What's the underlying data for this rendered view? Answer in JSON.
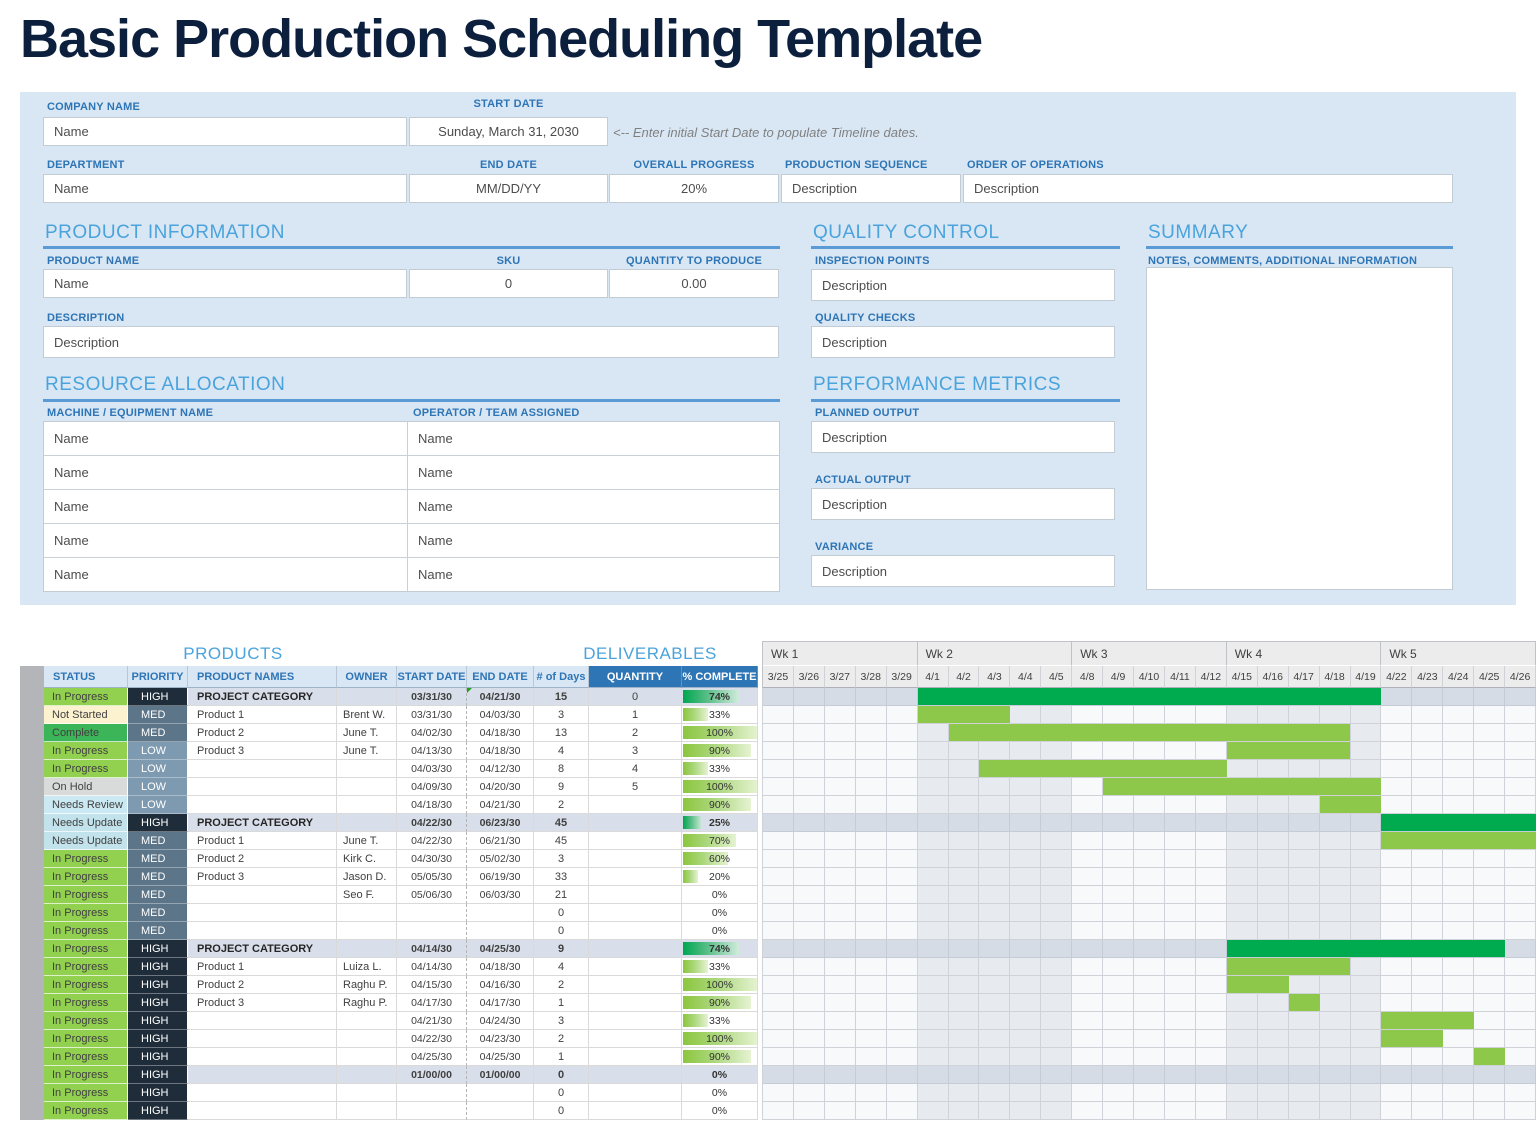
{
  "page_title": "Basic Production Scheduling Template",
  "colors": {
    "status": {
      "In Progress": "#92d050",
      "Not Started": "#fdf2d0",
      "Complete": "#3cb558",
      "On Hold": "#d9dbdb",
      "Needs Review": "#cbe9f2",
      "Needs Update": "#c2e2ec"
    },
    "priority": {
      "HIGH": "#1f2d3a",
      "MED": "#5d7588",
      "LOW": "#7e9ab0"
    },
    "gantt_bar_dark": "#00ab4f",
    "gantt_bar_light": "#8dc84b",
    "accent_blue": "#2e75b6",
    "section_blue": "#4aa3dc"
  },
  "form": {
    "company_name": {
      "label": "COMPANY NAME",
      "value": "Name"
    },
    "start_date": {
      "label": "START DATE",
      "value": "Sunday, March 31, 2030"
    },
    "start_date_hint": "<-- Enter initial Start Date to populate Timeline dates.",
    "department": {
      "label": "DEPARTMENT",
      "value": "Name"
    },
    "end_date": {
      "label": "END DATE",
      "value": "MM/DD/YY"
    },
    "overall_progress": {
      "label": "OVERALL PROGRESS",
      "value": "20%"
    },
    "production_sequence": {
      "label": "PRODUCTION SEQUENCE",
      "value": "Description"
    },
    "order_of_operations": {
      "label": "ORDER OF OPERATIONS",
      "value": "Description"
    }
  },
  "product_information": {
    "title": "PRODUCT INFORMATION",
    "product_name": {
      "label": "PRODUCT NAME",
      "value": "Name"
    },
    "sku": {
      "label": "SKU",
      "value": "0"
    },
    "quantity_to_produce": {
      "label": "QUANTITY TO PRODUCE",
      "value": "0.00"
    },
    "description": {
      "label": "DESCRIPTION",
      "value": "Description"
    }
  },
  "quality_control": {
    "title": "QUALITY CONTROL",
    "inspection_points": {
      "label": "INSPECTION POINTS",
      "value": "Description"
    },
    "quality_checks": {
      "label": "QUALITY CHECKS",
      "value": "Description"
    }
  },
  "summary": {
    "title": "SUMMARY",
    "notes_label": "NOTES, COMMENTS, ADDITIONAL INFORMATION",
    "notes_value": ""
  },
  "resource_allocation": {
    "title": "RESOURCE ALLOCATION",
    "machine_label": "MACHINE / EQUIPMENT NAME",
    "operator_label": "OPERATOR / TEAM ASSIGNED",
    "rows": [
      {
        "machine": "Name",
        "operator": "Name"
      },
      {
        "machine": "Name",
        "operator": "Name"
      },
      {
        "machine": "Name",
        "operator": "Name"
      },
      {
        "machine": "Name",
        "operator": "Name"
      },
      {
        "machine": "Name",
        "operator": "Name"
      }
    ]
  },
  "performance_metrics": {
    "title": "PERFORMANCE METRICS",
    "planned_output": {
      "label": "PLANNED OUTPUT",
      "value": "Description"
    },
    "actual_output": {
      "label": "ACTUAL OUTPUT",
      "value": "Description"
    },
    "variance": {
      "label": "VARIANCE",
      "value": "Description"
    }
  },
  "schedule_table": {
    "products_title": "PRODUCTS",
    "deliverables_title": "DELIVERABLES",
    "columns": [
      "STATUS",
      "PRIORITY",
      "PRODUCT NAMES",
      "OWNER",
      "START DATE",
      "END DATE",
      "# of Days",
      "QUANTITY",
      "% COMPLETE"
    ],
    "rows": [
      {
        "status": "In Progress",
        "priority": "HIGH",
        "product": "PROJECT CATEGORY",
        "owner": "",
        "start": "03/31/30",
        "end": "04/21/30",
        "days": "15",
        "qty": "0",
        "pct": "74%",
        "pct_value": 74,
        "category": true,
        "note_marker": true,
        "bar": {
          "from": 5,
          "to": 19
        },
        "bar_type": "dark"
      },
      {
        "status": "Not Started",
        "priority": "MED",
        "product": "Product 1",
        "owner": "Brent W.",
        "start": "03/31/30",
        "end": "04/03/30",
        "days": "3",
        "qty": "1",
        "pct": "33%",
        "pct_value": 33,
        "bar": {
          "from": 5,
          "to": 7
        },
        "bar_type": "light"
      },
      {
        "status": "Complete",
        "priority": "MED",
        "product": "Product 2",
        "owner": "June T.",
        "start": "04/02/30",
        "end": "04/18/30",
        "days": "13",
        "qty": "2",
        "pct": "100%",
        "pct_value": 100,
        "bar": {
          "from": 6,
          "to": 18
        },
        "bar_type": "light"
      },
      {
        "status": "In Progress",
        "priority": "LOW",
        "product": "Product 3",
        "owner": "June T.",
        "start": "04/13/30",
        "end": "04/18/30",
        "days": "4",
        "qty": "3",
        "pct": "90%",
        "pct_value": 90,
        "bar": {
          "from": 15,
          "to": 18
        },
        "bar_type": "light"
      },
      {
        "status": "In Progress",
        "priority": "LOW",
        "product": "",
        "owner": "",
        "start": "04/03/30",
        "end": "04/12/30",
        "days": "8",
        "qty": "4",
        "pct": "33%",
        "pct_value": 33,
        "bar": {
          "from": 7,
          "to": 14
        },
        "bar_type": "light"
      },
      {
        "status": "On Hold",
        "priority": "LOW",
        "product": "",
        "owner": "",
        "start": "04/09/30",
        "end": "04/20/30",
        "days": "9",
        "qty": "5",
        "pct": "100%",
        "pct_value": 100,
        "bar": {
          "from": 11,
          "to": 19
        },
        "bar_type": "light"
      },
      {
        "status": "Needs Review",
        "priority": "LOW",
        "product": "",
        "owner": "",
        "start": "04/18/30",
        "end": "04/21/30",
        "days": "2",
        "qty": "",
        "pct": "90%",
        "pct_value": 90,
        "bar": {
          "from": 18,
          "to": 19
        },
        "bar_type": "light"
      },
      {
        "status": "Needs Update",
        "priority": "HIGH",
        "product": "PROJECT CATEGORY",
        "owner": "",
        "start": "04/22/30",
        "end": "06/23/30",
        "days": "45",
        "qty": "",
        "pct": "25%",
        "pct_value": 25,
        "category": true,
        "bar": {
          "from": 20,
          "to": 24
        },
        "bar_type": "dark"
      },
      {
        "status": "Needs Update",
        "priority": "MED",
        "product": "Product 1",
        "owner": "June T.",
        "start": "04/22/30",
        "end": "06/21/30",
        "days": "45",
        "qty": "",
        "pct": "70%",
        "pct_value": 70,
        "bar": {
          "from": 20,
          "to": 24
        },
        "bar_type": "light"
      },
      {
        "status": "In Progress",
        "priority": "MED",
        "product": "Product 2",
        "owner": "Kirk C.",
        "start": "04/30/30",
        "end": "05/02/30",
        "days": "3",
        "qty": "",
        "pct": "60%",
        "pct_value": 60
      },
      {
        "status": "In Progress",
        "priority": "MED",
        "product": "Product 3",
        "owner": "Jason D.",
        "start": "05/05/30",
        "end": "06/19/30",
        "days": "33",
        "qty": "",
        "pct": "20%",
        "pct_value": 20
      },
      {
        "status": "In Progress",
        "priority": "MED",
        "product": "",
        "owner": "Seo F.",
        "start": "05/06/30",
        "end": "06/03/30",
        "days": "21",
        "qty": "",
        "pct": "0%",
        "pct_value": 0
      },
      {
        "status": "In Progress",
        "priority": "MED",
        "product": "",
        "owner": "",
        "start": "",
        "end": "",
        "days": "0",
        "qty": "",
        "pct": "0%",
        "pct_value": 0
      },
      {
        "status": "In Progress",
        "priority": "MED",
        "product": "",
        "owner": "",
        "start": "",
        "end": "",
        "days": "0",
        "qty": "",
        "pct": "0%",
        "pct_value": 0
      },
      {
        "status": "In Progress",
        "priority": "HIGH",
        "product": "PROJECT CATEGORY",
        "owner": "",
        "start": "04/14/30",
        "end": "04/25/30",
        "days": "9",
        "qty": "",
        "pct": "74%",
        "pct_value": 74,
        "category": true,
        "bar": {
          "from": 15,
          "to": 23
        },
        "bar_type": "dark"
      },
      {
        "status": "In Progress",
        "priority": "HIGH",
        "product": "Product 1",
        "owner": "Luiza L.",
        "start": "04/14/30",
        "end": "04/18/30",
        "days": "4",
        "qty": "",
        "pct": "33%",
        "pct_value": 33,
        "bar": {
          "from": 15,
          "to": 18
        },
        "bar_type": "light"
      },
      {
        "status": "In Progress",
        "priority": "HIGH",
        "product": "Product 2",
        "owner": "Raghu P.",
        "start": "04/15/30",
        "end": "04/16/30",
        "days": "2",
        "qty": "",
        "pct": "100%",
        "pct_value": 100,
        "bar": {
          "from": 15,
          "to": 16
        },
        "bar_type": "light"
      },
      {
        "status": "In Progress",
        "priority": "HIGH",
        "product": "Product 3",
        "owner": "Raghu P.",
        "start": "04/17/30",
        "end": "04/17/30",
        "days": "1",
        "qty": "",
        "pct": "90%",
        "pct_value": 90,
        "bar": {
          "from": 17,
          "to": 17
        },
        "bar_type": "light"
      },
      {
        "status": "In Progress",
        "priority": "HIGH",
        "product": "",
        "owner": "",
        "start": "04/21/30",
        "end": "04/24/30",
        "days": "3",
        "qty": "",
        "pct": "33%",
        "pct_value": 33,
        "bar": {
          "from": 20,
          "to": 22
        },
        "bar_type": "light"
      },
      {
        "status": "In Progress",
        "priority": "HIGH",
        "product": "",
        "owner": "",
        "start": "04/22/30",
        "end": "04/23/30",
        "days": "2",
        "qty": "",
        "pct": "100%",
        "pct_value": 100,
        "bar": {
          "from": 20,
          "to": 21
        },
        "bar_type": "light"
      },
      {
        "status": "In Progress",
        "priority": "HIGH",
        "product": "",
        "owner": "",
        "start": "04/25/30",
        "end": "04/25/30",
        "days": "1",
        "qty": "",
        "pct": "90%",
        "pct_value": 90,
        "bar": {
          "from": 23,
          "to": 23
        },
        "bar_type": "light"
      },
      {
        "status": "In Progress",
        "priority": "HIGH",
        "product": "",
        "owner": "",
        "start": "01/00/00",
        "end": "01/00/00",
        "days": "0",
        "qty": "",
        "pct": "0%",
        "pct_value": 0,
        "category": true
      },
      {
        "status": "In Progress",
        "priority": "HIGH",
        "product": "",
        "owner": "",
        "start": "",
        "end": "",
        "days": "0",
        "qty": "",
        "pct": "0%",
        "pct_value": 0
      },
      {
        "status": "In Progress",
        "priority": "HIGH",
        "product": "",
        "owner": "",
        "start": "",
        "end": "",
        "days": "0",
        "qty": "",
        "pct": "0%",
        "pct_value": 0
      }
    ]
  },
  "gantt": {
    "weeks": [
      {
        "label": "Wk 1",
        "days": [
          "3/25",
          "3/26",
          "3/27",
          "3/28",
          "3/29"
        ]
      },
      {
        "label": "Wk 2",
        "days": [
          "4/1",
          "4/2",
          "4/3",
          "4/4",
          "4/5"
        ]
      },
      {
        "label": "Wk 3",
        "days": [
          "4/8",
          "4/9",
          "4/10",
          "4/11",
          "4/12"
        ]
      },
      {
        "label": "Wk 4",
        "days": [
          "4/15",
          "4/16",
          "4/17",
          "4/18",
          "4/19"
        ]
      },
      {
        "label": "Wk 5",
        "days": [
          "4/22",
          "4/23",
          "4/24",
          "4/25",
          "4/26"
        ]
      }
    ]
  }
}
